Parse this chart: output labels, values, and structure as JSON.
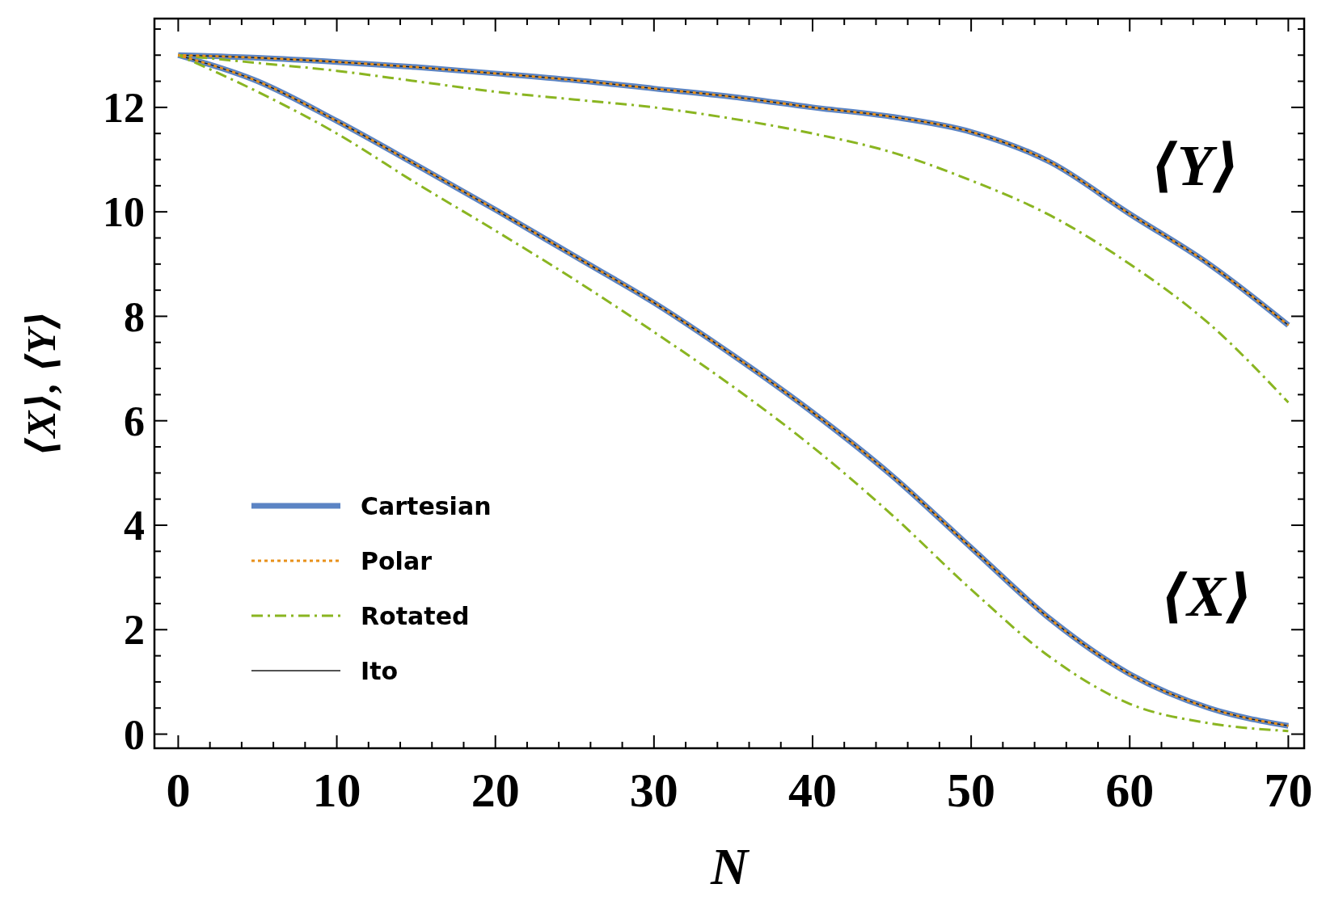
{
  "chart_data": {
    "type": "line",
    "xlabel": "N",
    "ylabel": "⟨X⟩, ⟨Y⟩",
    "x": [
      0,
      5,
      10,
      15,
      20,
      25,
      30,
      35,
      40,
      45,
      50,
      55,
      60,
      65,
      70
    ],
    "xlim": [
      -1.5,
      71
    ],
    "ylim": [
      -0.27,
      13.7
    ],
    "xticks": [
      0,
      {
        "value": 2,
        "label": null
      },
      {
        "value": 4,
        "label": null
      },
      {
        "value": 6,
        "label": null
      },
      {
        "value": 8,
        "label": null
      },
      10,
      {
        "value": 12,
        "label": null
      },
      {
        "value": 14,
        "label": null
      },
      {
        "value": 16,
        "label": null
      },
      {
        "value": 18,
        "label": null
      },
      20,
      {
        "value": 22,
        "label": null
      },
      {
        "value": 24,
        "label": null
      },
      {
        "value": 26,
        "label": null
      },
      {
        "value": 28,
        "label": null
      },
      30,
      {
        "value": 32,
        "label": null
      },
      {
        "value": 34,
        "label": null
      },
      {
        "value": 36,
        "label": null
      },
      {
        "value": 38,
        "label": null
      },
      40,
      {
        "value": 42,
        "label": null
      },
      {
        "value": 44,
        "label": null
      },
      {
        "value": 46,
        "label": null
      },
      {
        "value": 48,
        "label": null
      },
      50,
      {
        "value": 52,
        "label": null
      },
      {
        "value": 54,
        "label": null
      },
      {
        "value": 56,
        "label": null
      },
      {
        "value": 58,
        "label": null
      },
      60,
      {
        "value": 62,
        "label": null
      },
      {
        "value": 64,
        "label": null
      },
      {
        "value": 66,
        "label": null
      },
      {
        "value": 68,
        "label": null
      },
      70
    ],
    "yticks": [
      0,
      {
        "value": 0.5,
        "label": null
      },
      {
        "value": 1,
        "label": null
      },
      {
        "value": 1.5,
        "label": null
      },
      2,
      {
        "value": 2.5,
        "label": null
      },
      {
        "value": 3,
        "label": null
      },
      {
        "value": 3.5,
        "label": null
      },
      4,
      {
        "value": 4.5,
        "label": null
      },
      {
        "value": 5,
        "label": null
      },
      {
        "value": 5.5,
        "label": null
      },
      6,
      {
        "value": 6.5,
        "label": null
      },
      {
        "value": 7,
        "label": null
      },
      {
        "value": 7.5,
        "label": null
      },
      8,
      {
        "value": 8.5,
        "label": null
      },
      {
        "value": 9,
        "label": null
      },
      {
        "value": 9.5,
        "label": null
      },
      10,
      {
        "value": 10.5,
        "label": null
      },
      {
        "value": 11,
        "label": null
      },
      {
        "value": 11.5,
        "label": null
      },
      12,
      {
        "value": 12.5,
        "label": null
      },
      {
        "value": 13,
        "label": null
      },
      {
        "value": 13.5,
        "label": null
      }
    ],
    "grid": false,
    "legend": "bottom left",
    "marker": "none",
    "series": [
      {
        "name": "Cartesian",
        "color": "#5b84c4",
        "line_style": "solid",
        "values": [
          13,
          12.5,
          11.74,
          10.9,
          10.04,
          9.15,
          8.26,
          7.25,
          6.16,
          4.95,
          3.57,
          2.2,
          1.15,
          0.5,
          0.16
        ]
      },
      {
        "name": "Polar",
        "color": "#e8901a",
        "line_style": "dotted",
        "values": [
          13,
          12.5,
          11.74,
          10.9,
          10.04,
          9.15,
          8.26,
          7.25,
          6.16,
          4.95,
          3.57,
          2.2,
          1.15,
          0.5,
          0.16
        ]
      },
      {
        "name": "Rotated",
        "color": "#8ab521",
        "line_style": "dashed",
        "values": [
          13,
          12.3,
          11.5,
          10.55,
          9.64,
          8.7,
          7.7,
          6.65,
          5.5,
          4.2,
          2.77,
          1.47,
          0.58,
          0.21,
          0.06
        ]
      },
      {
        "name": "Ito",
        "color": "#1a1a1a",
        "line_style": "solid",
        "values": [
          13,
          12.5,
          11.74,
          10.9,
          10.04,
          9.15,
          8.26,
          7.25,
          6.16,
          4.95,
          3.57,
          2.2,
          1.15,
          0.5,
          0.16
        ]
      },
      {
        "color": "#5b84c4",
        "line_style": "solid",
        "values": [
          13,
          12.95,
          12.87,
          12.77,
          12.65,
          12.52,
          12.36,
          12.2,
          12.0,
          11.82,
          11.53,
          10.95,
          9.96,
          9.0,
          7.83
        ]
      },
      {
        "color": "#e8901a",
        "line_style": "dotted",
        "values": [
          13,
          12.95,
          12.87,
          12.77,
          12.65,
          12.52,
          12.36,
          12.2,
          12.0,
          11.82,
          11.53,
          10.95,
          9.96,
          9.0,
          7.83
        ]
      },
      {
        "color": "#8ab521",
        "line_style": "dashed",
        "values": [
          13,
          12.85,
          12.7,
          12.5,
          12.3,
          12.15,
          12.0,
          11.78,
          11.5,
          11.14,
          10.6,
          9.93,
          9.0,
          7.86,
          6.35
        ]
      },
      {
        "color": "#1a1a1a",
        "line_style": "solid",
        "values": [
          13,
          12.95,
          12.87,
          12.77,
          12.65,
          12.52,
          12.36,
          12.2,
          12.0,
          11.82,
          11.53,
          10.95,
          9.96,
          9.0,
          7.83
        ]
      }
    ],
    "annotations": [
      "⟨Y⟩",
      "⟨X⟩"
    ]
  }
}
